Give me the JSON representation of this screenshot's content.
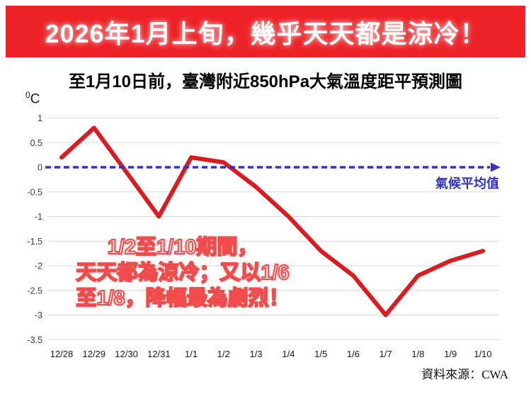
{
  "banner": {
    "text": "2026年1月上旬，幾乎天天都是涼冷！",
    "bg_color": "#ec2227",
    "text_color": "#ffffff"
  },
  "y_unit": {
    "sup": "0",
    "base": "C"
  },
  "chart_data": {
    "type": "line",
    "title": "至1月10日前，臺灣附近850hPa大氣溫度距平預測圖",
    "categories": [
      "12/28",
      "12/29",
      "12/30",
      "12/31",
      "1/1",
      "1/2",
      "1/3",
      "1/4",
      "1/5",
      "1/6",
      "1/7",
      "1/8",
      "1/9",
      "1/10"
    ],
    "values": [
      0.2,
      0.8,
      -0.1,
      -1.0,
      0.2,
      0.1,
      -0.4,
      -1.0,
      -1.7,
      -2.2,
      -3.0,
      -2.2,
      -1.9,
      -1.7
    ],
    "xlabel": "",
    "ylabel": "0C",
    "ylim": [
      -3.5,
      1
    ],
    "yticks": [
      1,
      0.5,
      0,
      -0.5,
      -1,
      -1.5,
      -2,
      -2.5,
      -3,
      -3.5
    ],
    "ytick_labels": [
      "1",
      "0.5",
      "0",
      "-0.5",
      "-1",
      "-1.5",
      "-2",
      "-2.5",
      "-3",
      "-3.5"
    ],
    "grid": true,
    "legend_position": "none",
    "line_color": "#dc1b20",
    "grid_color": "#d8d8d8",
    "reference_line": {
      "value": 0,
      "label": "氣候平均值",
      "color": "#3232c8",
      "style": "dashed-arrow"
    }
  },
  "annotation": {
    "lines": [
      "1/2至1/10期間，",
      "天天都為涼冷；又以1/6",
      "至1/8，降幅最為劇烈！"
    ]
  },
  "source": "資料來源：CWA"
}
